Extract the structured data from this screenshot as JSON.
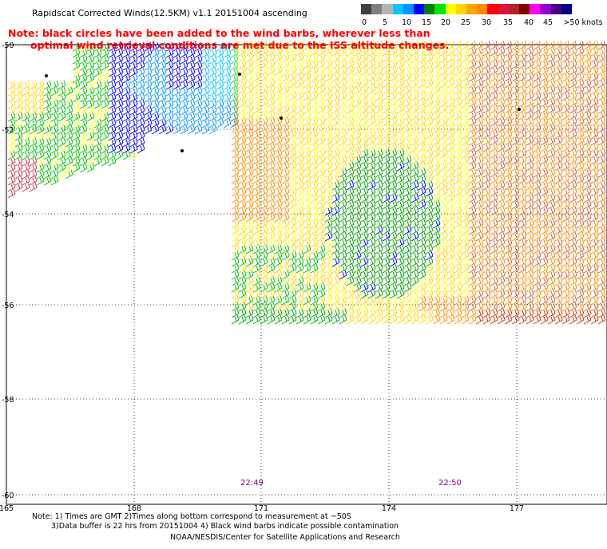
{
  "title": "Rapidscat Corrected Winds(12.5KM) v1.1 20151004 ascending",
  "note": {
    "line1": "Note: black circles have been added to the wind barbs, wherever less than",
    "line2": "optimal wind retrieval conditions are met due to the ISS altitude changes."
  },
  "legend": {
    "ticks": [
      "0",
      "5",
      "10",
      "15",
      "20",
      "25",
      "30",
      "35",
      "40",
      "45",
      ">50 knots"
    ],
    "colors": [
      "#404040",
      "#808080",
      "#b4b4b4",
      "#00c8ff",
      "#0096ff",
      "#0000ff",
      "#008000",
      "#00e600",
      "#ffff00",
      "#ffd700",
      "#ffa500",
      "#ff8c00",
      "#ff0000",
      "#dc143c",
      "#b22222",
      "#800000",
      "#ff00ff",
      "#9400d3",
      "#4b0082",
      "#000080"
    ]
  },
  "axes": {
    "lat_labels": [
      "-50",
      "-52",
      "-54",
      "-56",
      "-58",
      "-60"
    ],
    "lon_labels": [
      "165",
      "168",
      "171",
      "174",
      "177"
    ],
    "grid": "dotted"
  },
  "times": [
    "22:49",
    "22:50"
  ],
  "footer": {
    "line1": "Note: 1) Times are GMT 2)Times along bottom correspond to measurement at ~50S",
    "line2": "3)Data buffer is 22 hrs from 20151004 4) Black wind barbs indicate possible contamination",
    "line3": "NOAA/NESDIS/Center for Satellite Applications and Research"
  }
}
